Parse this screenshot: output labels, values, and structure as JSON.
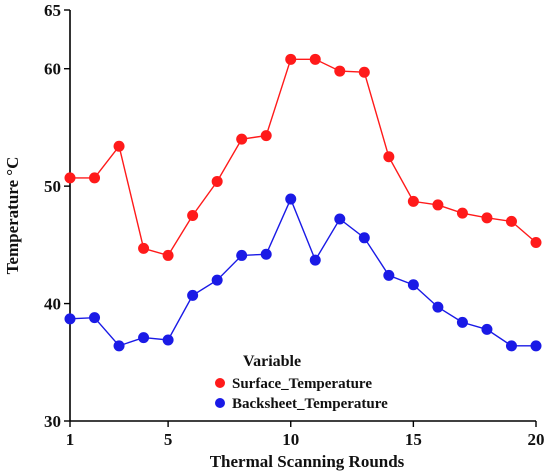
{
  "chart_data": {
    "type": "line",
    "xlabel": "Thermal Scanning Rounds",
    "ylabel": "Temperature °C",
    "xlim": [
      1,
      20
    ],
    "ylim": [
      30,
      65
    ],
    "xticks": [
      1,
      5,
      10,
      15,
      20
    ],
    "yticks": [
      30,
      40,
      50,
      60,
      65
    ],
    "grid": false,
    "legend": {
      "title": "Variable",
      "position": "bottom-left"
    },
    "x": [
      1,
      2,
      3,
      4,
      5,
      6,
      7,
      8,
      9,
      10,
      11,
      12,
      13,
      14,
      15,
      16,
      17,
      18,
      19,
      20
    ],
    "series": [
      {
        "name": "Surface_Temperature",
        "color": "#ff1a1a",
        "values": [
          50.7,
          50.7,
          53.4,
          44.7,
          44.1,
          47.5,
          50.4,
          54.0,
          54.3,
          60.8,
          60.8,
          59.8,
          59.7,
          52.5,
          48.7,
          48.4,
          47.7,
          47.3,
          47.0,
          45.2
        ]
      },
      {
        "name": "Backsheet_Temperature",
        "color": "#1a1ae6",
        "values": [
          38.7,
          38.8,
          36.4,
          37.1,
          36.9,
          40.7,
          42.0,
          44.1,
          44.2,
          48.9,
          43.7,
          47.2,
          45.6,
          42.4,
          41.6,
          39.7,
          38.4,
          37.8,
          36.4,
          36.4
        ]
      }
    ]
  }
}
